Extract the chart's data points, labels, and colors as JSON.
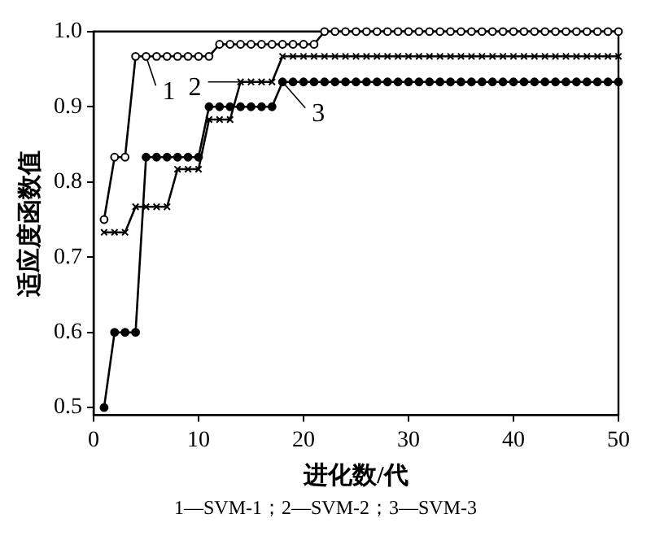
{
  "chart_data": {
    "type": "line",
    "xlabel": "进化数/代",
    "ylabel": "适应度函数值",
    "x": [
      1,
      2,
      3,
      4,
      5,
      6,
      7,
      8,
      9,
      10,
      11,
      12,
      13,
      14,
      15,
      16,
      17,
      18,
      19,
      20,
      21,
      22,
      23,
      24,
      25,
      26,
      27,
      28,
      29,
      30,
      31,
      32,
      33,
      34,
      35,
      36,
      37,
      38,
      39,
      40,
      41,
      42,
      43,
      44,
      45,
      46,
      47,
      48,
      49,
      50
    ],
    "series": [
      {
        "color": "#000000",
        "marker": "circle",
        "values": [
          0.75,
          0.833,
          0.833,
          0.967,
          0.967,
          0.967,
          0.967,
          0.967,
          0.967,
          0.967,
          0.967,
          0.983,
          0.983,
          0.983,
          0.983,
          0.983,
          0.983,
          0.983,
          0.983,
          0.983,
          0.983,
          1,
          1,
          1,
          1,
          1,
          1,
          1,
          1,
          1,
          1,
          1,
          1,
          1,
          1,
          1,
          1,
          1,
          1,
          1,
          1,
          1,
          1,
          1,
          1,
          1,
          1,
          1,
          1,
          1
        ]
      },
      {
        "color": "#000000",
        "marker": "cross",
        "values": [
          0.733,
          0.733,
          0.733,
          0.767,
          0.767,
          0.767,
          0.767,
          0.817,
          0.817,
          0.817,
          0.883,
          0.883,
          0.883,
          0.933,
          0.933,
          0.933,
          0.933,
          0.967,
          0.967,
          0.967,
          0.967,
          0.967,
          0.967,
          0.967,
          0.967,
          0.967,
          0.967,
          0.967,
          0.967,
          0.967,
          0.967,
          0.967,
          0.967,
          0.967,
          0.967,
          0.967,
          0.967,
          0.967,
          0.967,
          0.967,
          0.967,
          0.967,
          0.967,
          0.967,
          0.967,
          0.967,
          0.967,
          0.967,
          0.967,
          0.967
        ]
      },
      {
        "color": "#000000",
        "marker": "circle",
        "values": [
          0.5,
          0.6,
          0.6,
          0.6,
          0.833,
          0.833,
          0.833,
          0.833,
          0.833,
          0.833,
          0.9,
          0.9,
          0.9,
          0.9,
          0.9,
          0.9,
          0.9,
          0.933,
          0.933,
          0.933,
          0.933,
          0.933,
          0.933,
          0.933,
          0.933,
          0.933,
          0.933,
          0.933,
          0.933,
          0.933,
          0.933,
          0.933,
          0.933,
          0.933,
          0.933,
          0.933,
          0.933,
          0.933,
          0.933,
          0.933,
          0.933,
          0.933,
          0.933,
          0.933,
          0.933,
          0.933,
          0.933,
          0.933,
          0.933,
          0.933
        ]
      }
    ],
    "xlim": [
      0,
      50
    ],
    "xticks": [
      0,
      10,
      20,
      30,
      40,
      50
    ],
    "ylim": [
      0.49,
      1.0
    ],
    "yticks": [
      0.5,
      0.6,
      0.7,
      0.8,
      0.9,
      {
        "value": 1,
        "label": "1.0"
      }
    ],
    "grid": false,
    "legend": false,
    "line_style": "solid",
    "annotations": [
      {
        "text": "1",
        "x": 5,
        "y": 0.967
      },
      {
        "text": "2",
        "x": 14,
        "y": 0.933
      },
      {
        "text": "3",
        "x": 18,
        "y": 0.933
      },
      "1—SVM-1；2—SVM-2；3—SVM-3"
    ]
  }
}
